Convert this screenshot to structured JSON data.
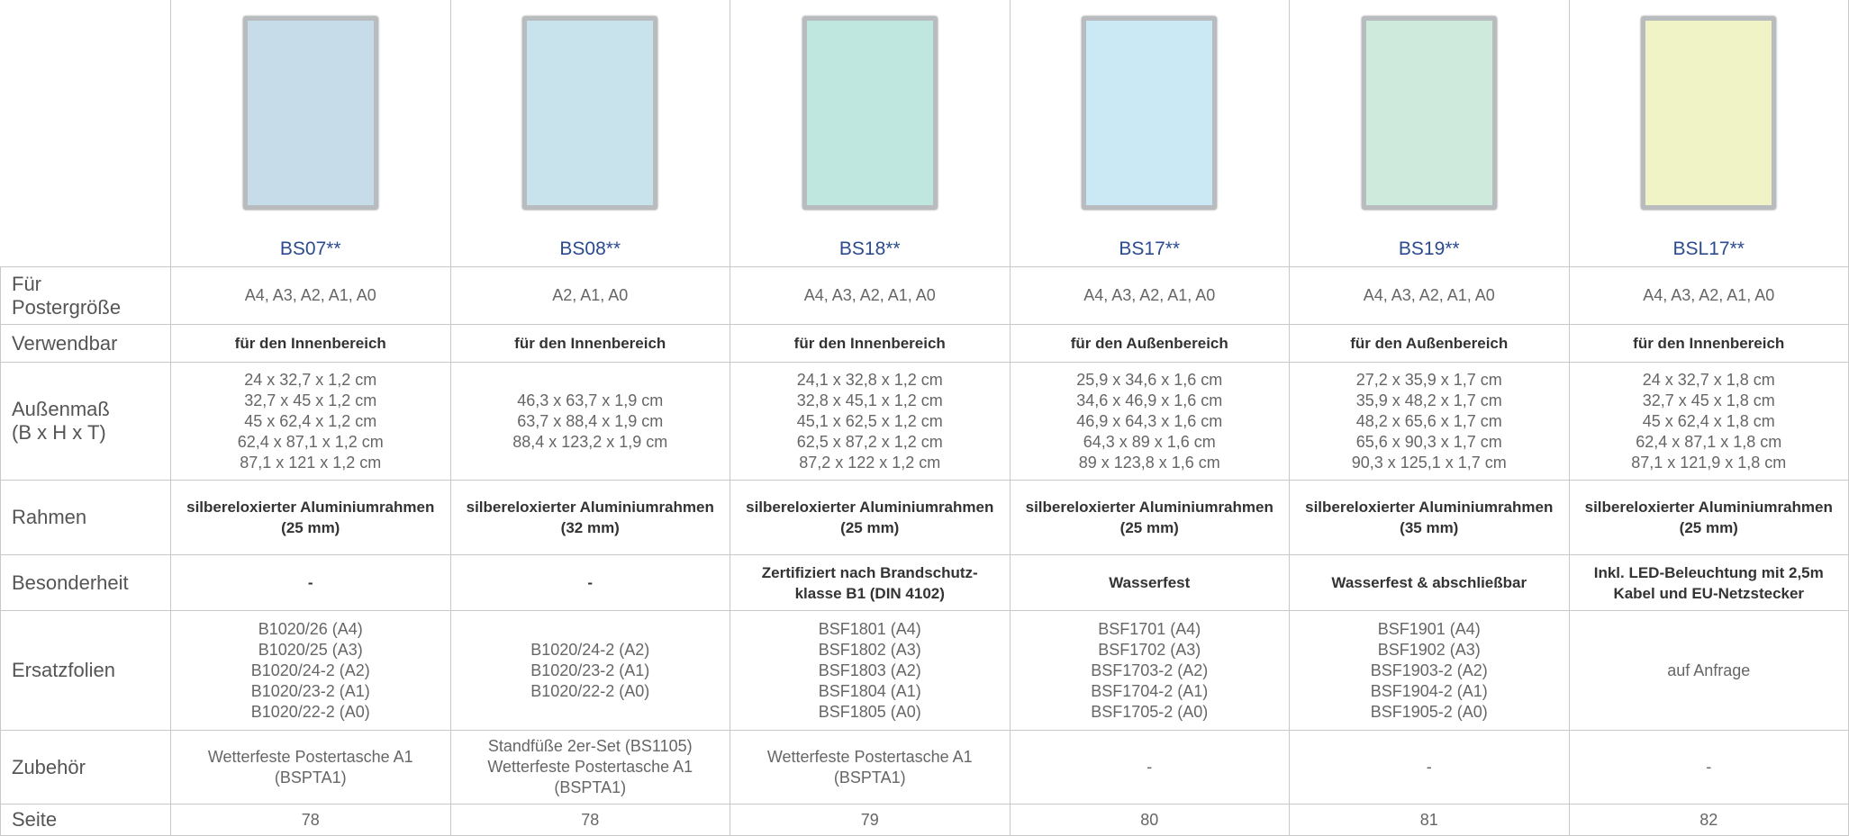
{
  "products": [
    {
      "name": "BS07**"
    },
    {
      "name": "BS08**"
    },
    {
      "name": "BS18**"
    },
    {
      "name": "BS17**"
    },
    {
      "name": "BS19**"
    },
    {
      "name": "BSL17**"
    }
  ],
  "rows": [
    {
      "label": [
        "Für",
        "Postergröße"
      ],
      "cells": [
        [
          "A4, A3, A2, A1, A0"
        ],
        [
          "A2, A1, A0"
        ],
        [
          "A4, A3, A2, A1, A0"
        ],
        [
          "A4, A3, A2, A1, A0"
        ],
        [
          "A4, A3, A2, A1, A0"
        ],
        [
          "A4, A3, A2, A1, A0"
        ]
      ]
    },
    {
      "label": [
        "Verwendbar"
      ],
      "cells": [
        [
          "für den Innenbereich"
        ],
        [
          "für den Innenbereich"
        ],
        [
          "für den Innenbereich"
        ],
        [
          "für den Außenbereich"
        ],
        [
          "für den Außenbereich"
        ],
        [
          "für den Innenbereich"
        ]
      ]
    },
    {
      "label": [
        "Außenmaß",
        "(B x H x T)"
      ],
      "cells": [
        [
          "24 x 32,7 x 1,2 cm",
          "32,7 x 45 x 1,2 cm",
          "45 x 62,4 x 1,2 cm",
          "62,4 x 87,1 x 1,2 cm",
          "87,1 x 121 x 1,2 cm"
        ],
        [
          "46,3 x 63,7 x 1,9 cm",
          "63,7 x 88,4 x 1,9 cm",
          "88,4 x 123,2 x 1,9 cm"
        ],
        [
          "24,1 x 32,8 x 1,2 cm",
          "32,8 x 45,1 x 1,2 cm",
          "45,1 x 62,5 x 1,2 cm",
          "62,5 x 87,2 x 1,2 cm",
          "87,2 x 122 x 1,2 cm"
        ],
        [
          "25,9 x 34,6 x 1,6 cm",
          "34,6 x 46,9 x 1,6 cm",
          "46,9 x 64,3 x 1,6 cm",
          "64,3 x 89 x 1,6 cm",
          "89 x 123,8 x 1,6 cm"
        ],
        [
          "27,2 x 35,9 x 1,7 cm",
          "35,9 x 48,2 x 1,7 cm",
          "48,2 x 65,6 x 1,7 cm",
          "65,6 x 90,3 x 1,7 cm",
          "90,3 x 125,1 x 1,7 cm"
        ],
        [
          "24 x 32,7 x 1,8 cm",
          "32,7 x 45 x 1,8 cm",
          "45 x 62,4 x 1,8 cm",
          "62,4 x 87,1 x 1,8 cm",
          "87,1 x 121,9 x 1,8 cm"
        ]
      ]
    },
    {
      "label": [
        "Rahmen"
      ],
      "cells": [
        [
          "silbereloxierter Aluminiumrahmen",
          "(25 mm)"
        ],
        [
          "silbereloxierter Aluminiumrahmen",
          "(32 mm)"
        ],
        [
          "silbereloxierter Aluminiumrahmen",
          "(25 mm)"
        ],
        [
          "silbereloxierter Aluminiumrahmen",
          "(25 mm)"
        ],
        [
          "silbereloxierter Aluminiumrahmen",
          "(35 mm)"
        ],
        [
          "silbereloxierter Aluminiumrahmen",
          "(25 mm)"
        ]
      ]
    },
    {
      "label": [
        "Besonderheit"
      ],
      "cells": [
        [
          "-"
        ],
        [
          "-"
        ],
        [
          "Zertifiziert nach Brandschutz-",
          "klasse B1 (DIN 4102)"
        ],
        [
          "Wasserfest"
        ],
        [
          "Wasserfest & abschließbar"
        ],
        [
          "Inkl. LED-Beleuchtung mit 2,5m",
          "Kabel und EU-Netzstecker"
        ]
      ]
    },
    {
      "label": [
        "Ersatzfolien"
      ],
      "cells": [
        [
          "B1020/26 (A4)",
          "B1020/25 (A3)",
          "B1020/24-2 (A2)",
          "B1020/23-2 (A1)",
          "B1020/22-2 (A0)"
        ],
        [
          "B1020/24-2 (A2)",
          "B1020/23-2 (A1)",
          "B1020/22-2 (A0)"
        ],
        [
          "BSF1801 (A4)",
          "BSF1802 (A3)",
          "BSF1803 (A2)",
          "BSF1804 (A1)",
          "BSF1805 (A0)"
        ],
        [
          "BSF1701 (A4)",
          "BSF1702 (A3)",
          "BSF1703-2 (A2)",
          "BSF1704-2 (A1)",
          "BSF1705-2 (A0)"
        ],
        [
          "BSF1901 (A4)",
          "BSF1902 (A3)",
          "BSF1903-2 (A2)",
          "BSF1904-2 (A1)",
          "BSF1905-2 (A0)"
        ],
        [
          "auf Anfrage"
        ]
      ]
    },
    {
      "label": [
        "Zubehör"
      ],
      "cells": [
        [
          "Wetterfeste Postertasche A1",
          "(BSPTA1)"
        ],
        [
          "Standfüße 2er-Set (BS1105)",
          "Wetterfeste Postertasche A1",
          "(BSPTA1)"
        ],
        [
          "Wetterfeste Postertasche A1",
          "(BSPTA1)"
        ],
        [
          "-"
        ],
        [
          "-"
        ],
        [
          "-"
        ]
      ]
    },
    {
      "label": [
        "Seite"
      ],
      "cells": [
        [
          "78"
        ],
        [
          "78"
        ],
        [
          "79"
        ],
        [
          "80"
        ],
        [
          "81"
        ],
        [
          "82"
        ]
      ]
    }
  ]
}
